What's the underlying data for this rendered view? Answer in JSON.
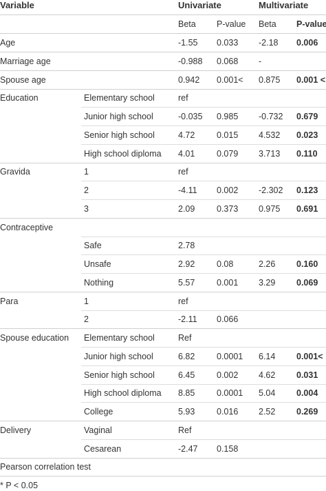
{
  "table": {
    "header": [
      "Variable",
      "Univariate",
      "Multivariate"
    ],
    "subheader": [
      "Beta",
      "P-value",
      "Beta",
      "P-value <"
    ],
    "rows": [
      [
        "Age",
        null,
        "-1.55",
        "0.033",
        "-2.18",
        "0.006"
      ],
      [
        "Marriage age",
        null,
        "-0.988",
        "0.068",
        "-",
        null
      ],
      [
        "Spouse age",
        null,
        "0.942",
        "0.001<",
        "0.875",
        "0.001 <"
      ],
      [
        "Education",
        "Elementary school",
        "ref",
        null,
        null,
        null
      ],
      [
        null,
        "Junior high school",
        "-0.035",
        "0.985",
        "-0.732",
        "0.679"
      ],
      [
        null,
        "Senior high school",
        "4.72",
        "0.015",
        "4.532",
        "0.023"
      ],
      [
        null,
        "High school diploma",
        "4.01",
        "0.079",
        "3.713",
        "0.110"
      ],
      [
        "Gravida",
        "1",
        "ref",
        null,
        null,
        null
      ],
      [
        null,
        "2",
        "-4.11",
        "0.002",
        "-2.302",
        "0.123"
      ],
      [
        null,
        "3",
        "2.09",
        "0.373",
        "0.975",
        "0.691"
      ],
      [
        "Contraceptive",
        null,
        null,
        null,
        null,
        null
      ],
      [
        null,
        "Safe",
        "2.78",
        null,
        null,
        null
      ],
      [
        null,
        "Unsafe",
        "2.92",
        "0.08",
        "2.26",
        "0.160"
      ],
      [
        null,
        "Nothing",
        "5.57",
        "0.001",
        "3.29",
        "0.069"
      ],
      [
        "Para",
        "1",
        "ref",
        null,
        null,
        null
      ],
      [
        null,
        "2",
        "-2.11",
        "0.066",
        null,
        null
      ],
      [
        "Spouse education",
        "Elementary school",
        "Ref",
        null,
        null,
        null
      ],
      [
        null,
        "Junior high school",
        "6.82",
        "0.0001",
        "6.14",
        "0.001<"
      ],
      [
        null,
        "Senior high school",
        "6.45",
        "0.002",
        "4.62",
        "0.031"
      ],
      [
        null,
        "High school diploma",
        "8.85",
        "0.0001",
        "5.04",
        "0.004"
      ],
      [
        null,
        "College",
        "5.93",
        "0.016",
        "2.52",
        "0.269"
      ],
      [
        "Delivery",
        "Vaginal",
        "Ref",
        null,
        null,
        null
      ],
      [
        null,
        "Cesarean",
        "-2.47",
        "0.158",
        null,
        null
      ]
    ],
    "notes": [
      "Pearson correlation test",
      "* P < 0.05"
    ]
  }
}
